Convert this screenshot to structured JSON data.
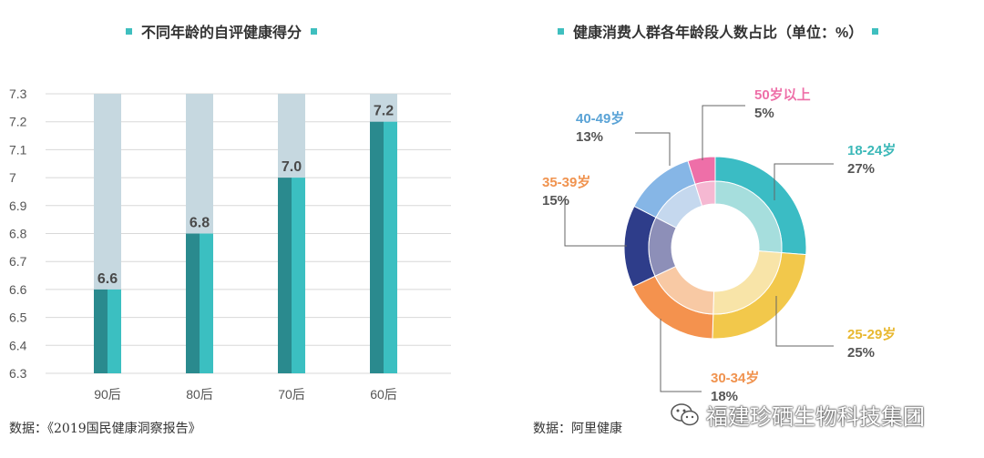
{
  "charts": {
    "left": {
      "title": "不同年龄的自评健康得分",
      "source": "数据：《2019国民健康洞察报告》"
    },
    "right": {
      "title": "健康消费人群各年龄段人数占比（单位：%）",
      "source": "数据：阿里健康"
    }
  },
  "watermark": {
    "text": "福建珍硒生物科技集团",
    "icon": "wechat-icon"
  },
  "colors": {
    "accent": "#3fbfbf",
    "bar_dark": "#2a8a8e",
    "bar_light": "#3bbfc1",
    "bar_bg": "#c6d8e0"
  },
  "chart_data": [
    {
      "type": "bar",
      "title": "不同年龄的自评健康得分",
      "categories": [
        "90后",
        "80后",
        "70后",
        "60后"
      ],
      "values": [
        6.6,
        6.8,
        7.0,
        7.2
      ],
      "value_labels": [
        "6.6",
        "6.8",
        "7.0",
        "7.2"
      ],
      "ylim": [
        6.3,
        7.3
      ],
      "yticks": [
        "6.3",
        "6.4",
        "6.5",
        "6.6",
        "6.7",
        "6.8",
        "6.9",
        "7",
        "7.1",
        "7.2",
        "7.3"
      ],
      "grid": true
    },
    {
      "type": "pie",
      "title": "健康消费人群各年龄段人数占比（单位：%）",
      "donut": true,
      "slices": [
        {
          "label": "18-24岁",
          "value": 27,
          "pct_label": "27%",
          "color": "#3bbcc4",
          "inner_color": "#a6dedd",
          "label_color": "#3bb8b8"
        },
        {
          "label": "25-29岁",
          "value": 25,
          "pct_label": "25%",
          "color": "#f2c84b",
          "inner_color": "#f8e4a8",
          "label_color": "#e8b830"
        },
        {
          "label": "30-34岁",
          "value": 18,
          "pct_label": "18%",
          "color": "#f4924e",
          "inner_color": "#f8c9a4",
          "label_color": "#f0934f"
        },
        {
          "label": "35-39岁",
          "value": 15,
          "pct_label": "15%",
          "color": "#2e3d8a",
          "inner_color": "#8d8fb8",
          "label_color": "#f0934f"
        },
        {
          "label": "40-49岁",
          "value": 13,
          "pct_label": "13%",
          "color": "#86b6e6",
          "inner_color": "#c5d8ee",
          "label_color": "#5aa3d6"
        },
        {
          "label": "50岁以上",
          "value": 5,
          "pct_label": "5%",
          "color": "#ee6fa8",
          "inner_color": "#f5b8d2",
          "label_color": "#ee6fa8"
        }
      ]
    }
  ]
}
